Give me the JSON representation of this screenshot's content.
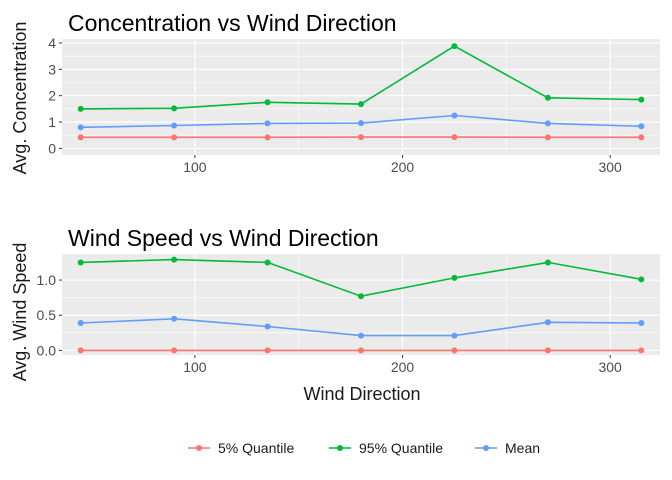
{
  "chart_data": [
    {
      "type": "line",
      "title": "Concentration vs Wind Direction",
      "xlabel": "",
      "ylabel": "Avg. Concentration",
      "x": [
        45,
        90,
        135,
        180,
        225,
        270,
        315
      ],
      "xlim": [
        36,
        324
      ],
      "ylim": [
        -0.25,
        4.15
      ],
      "xticks": [
        100,
        200,
        300
      ],
      "yticks": [
        0,
        1,
        2,
        3,
        4
      ],
      "grid": true,
      "series": [
        {
          "name": "5% Quantile",
          "color": "#F8766D",
          "values": [
            0.42,
            0.42,
            0.42,
            0.43,
            0.43,
            0.42,
            0.42
          ]
        },
        {
          "name": "95% Quantile",
          "color": "#00BA38",
          "values": [
            1.5,
            1.52,
            1.75,
            1.68,
            3.88,
            1.92,
            1.85
          ]
        },
        {
          "name": "Mean",
          "color": "#619CFF",
          "values": [
            0.8,
            0.87,
            0.95,
            0.96,
            1.25,
            0.95,
            0.84
          ]
        }
      ]
    },
    {
      "type": "line",
      "title": "Wind Speed vs Wind Direction",
      "xlabel": "Wind Direction",
      "ylabel": "Avg. Wind Speed",
      "x": [
        45,
        90,
        135,
        180,
        225,
        270,
        315
      ],
      "xlim": [
        36,
        324
      ],
      "ylim": [
        -0.065,
        1.37
      ],
      "xticks": [
        100,
        200,
        300
      ],
      "yticks": [
        0.0,
        0.5,
        1.0
      ],
      "ytick_labels": [
        "0.0",
        "0.5",
        "1.0"
      ],
      "grid": true,
      "series": [
        {
          "name": "5% Quantile",
          "color": "#F8766D",
          "values": [
            0.0,
            0.0,
            0.0,
            0.0,
            0.0,
            0.0,
            0.0
          ]
        },
        {
          "name": "95% Quantile",
          "color": "#00BA38",
          "values": [
            1.25,
            1.29,
            1.25,
            0.77,
            1.03,
            1.25,
            1.01
          ]
        },
        {
          "name": "Mean",
          "color": "#619CFF",
          "values": [
            0.39,
            0.45,
            0.34,
            0.21,
            0.21,
            0.4,
            0.39
          ]
        }
      ]
    }
  ],
  "legend": {
    "position": "bottom",
    "entries": [
      {
        "label": "5% Quantile",
        "color": "#F8766D"
      },
      {
        "label": "95% Quantile",
        "color": "#00BA38"
      },
      {
        "label": "Mean",
        "color": "#619CFF"
      }
    ]
  },
  "panel_background": "#EBEBEB"
}
